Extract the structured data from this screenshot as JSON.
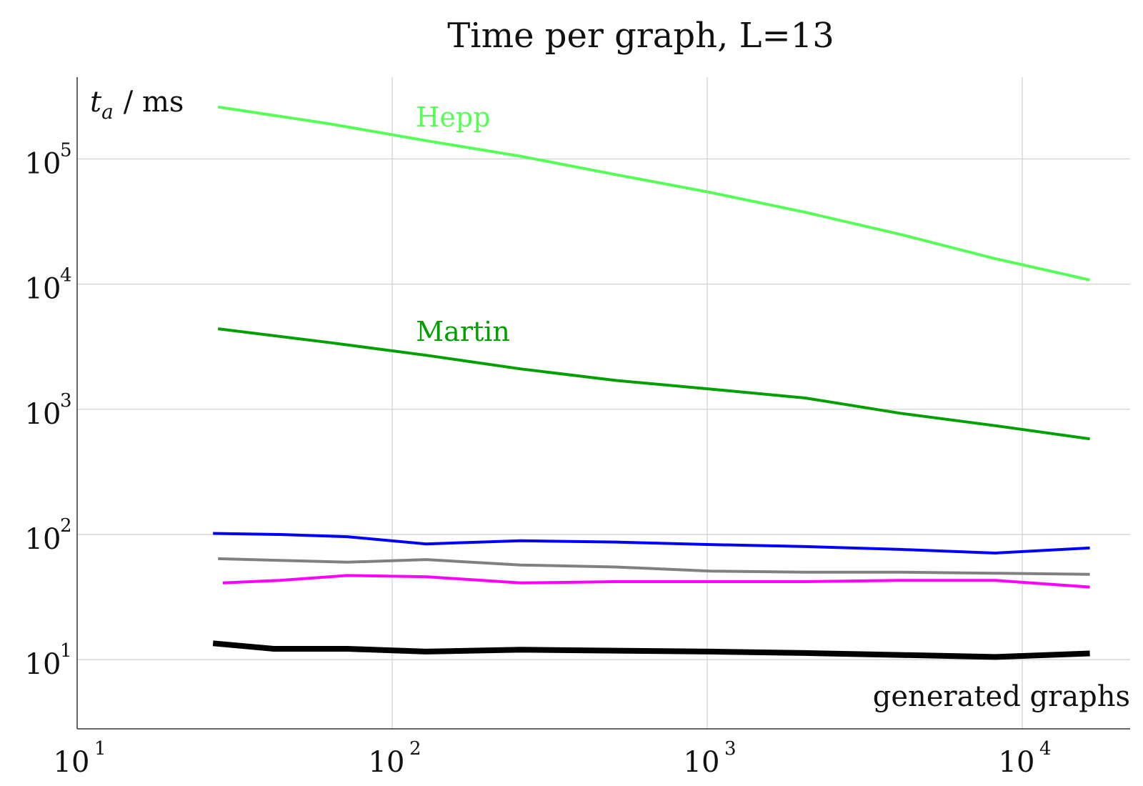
{
  "chart_data": {
    "type": "line",
    "title": "Time per graph, L=13",
    "xlabel": "generated graphs",
    "ylabel": {
      "symbol": "t",
      "subscript": "a",
      "unit": "/ ms"
    },
    "x_scale": "log",
    "y_scale": "log",
    "xlim": [
      10,
      22000
    ],
    "ylim": [
      2.8,
      450000
    ],
    "grid": true,
    "x_ticks": [
      {
        "base": "10",
        "exp": "1",
        "value": 10
      },
      {
        "base": "10",
        "exp": "2",
        "value": 100
      },
      {
        "base": "10",
        "exp": "3",
        "value": 1000
      },
      {
        "base": "10",
        "exp": "4",
        "value": 10000
      }
    ],
    "y_ticks": [
      {
        "base": "10",
        "exp": "1",
        "value": 10
      },
      {
        "base": "10",
        "exp": "2",
        "value": 100
      },
      {
        "base": "10",
        "exp": "3",
        "value": 1000
      },
      {
        "base": "10",
        "exp": "4",
        "value": 10000
      },
      {
        "base": "10",
        "exp": "5",
        "value": 100000
      }
    ],
    "series": [
      {
        "name": "Hepp",
        "color": "#55ff55",
        "width": 4,
        "labeled": true,
        "points": [
          [
            28,
            260000
          ],
          [
            64,
            190000
          ],
          [
            128,
            140000
          ],
          [
            256,
            105000
          ],
          [
            512,
            75000
          ],
          [
            1024,
            54000
          ],
          [
            2048,
            37500
          ],
          [
            4096,
            25000
          ],
          [
            8192,
            16000
          ],
          [
            16384,
            10800
          ]
        ]
      },
      {
        "name": "Martin",
        "color": "#00a000",
        "width": 4,
        "labeled": true,
        "points": [
          [
            28,
            4400
          ],
          [
            64,
            3400
          ],
          [
            128,
            2700
          ],
          [
            256,
            2100
          ],
          [
            512,
            1700
          ],
          [
            1024,
            1450
          ],
          [
            2048,
            1230
          ],
          [
            4096,
            930
          ],
          [
            8192,
            740
          ],
          [
            16384,
            580
          ]
        ]
      },
      {
        "color": "#0000ff",
        "width": 4,
        "points": [
          [
            27,
            102
          ],
          [
            44,
            100
          ],
          [
            72,
            96
          ],
          [
            128,
            84
          ],
          [
            256,
            89
          ],
          [
            512,
            87
          ],
          [
            1024,
            83
          ],
          [
            2048,
            80
          ],
          [
            4096,
            76
          ],
          [
            8192,
            71
          ],
          [
            16384,
            78
          ]
        ]
      },
      {
        "color": "#808080",
        "width": 4,
        "points": [
          [
            28,
            64
          ],
          [
            44,
            62
          ],
          [
            72,
            60
          ],
          [
            128,
            63
          ],
          [
            256,
            57
          ],
          [
            512,
            55
          ],
          [
            1024,
            51
          ],
          [
            2048,
            50
          ],
          [
            4096,
            50
          ],
          [
            8192,
            49
          ],
          [
            16384,
            48
          ]
        ]
      },
      {
        "color": "#ff00ff",
        "width": 4,
        "points": [
          [
            29,
            41
          ],
          [
            44,
            43
          ],
          [
            72,
            47
          ],
          [
            128,
            46
          ],
          [
            256,
            41
          ],
          [
            512,
            42
          ],
          [
            1024,
            42
          ],
          [
            2048,
            42
          ],
          [
            4096,
            43
          ],
          [
            8192,
            43
          ],
          [
            16384,
            38
          ]
        ]
      },
      {
        "color": "#000000",
        "width": 8,
        "points": [
          [
            27,
            13.5
          ],
          [
            42,
            12.2
          ],
          [
            72,
            12.2
          ],
          [
            128,
            11.6
          ],
          [
            256,
            12.0
          ],
          [
            512,
            11.8
          ],
          [
            1024,
            11.6
          ],
          [
            2048,
            11.3
          ],
          [
            4096,
            10.9
          ],
          [
            8192,
            10.5
          ],
          [
            16384,
            11.2
          ]
        ]
      }
    ]
  }
}
